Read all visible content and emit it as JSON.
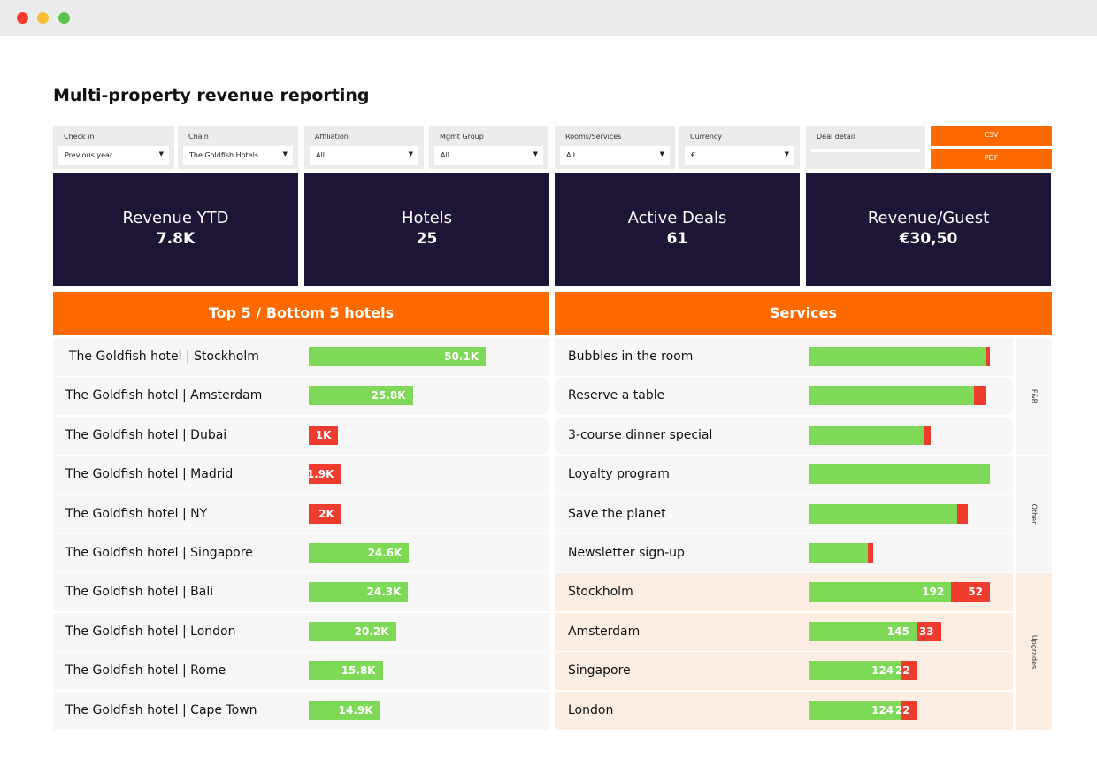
{
  "title": "Multi-property revenue reporting",
  "filters": [
    {
      "label": "Check in",
      "value": "Previous year"
    },
    {
      "label": "Chain",
      "value": "The Goldfish Hotels"
    },
    {
      "label": "Affiliation",
      "value": "All"
    },
    {
      "label": "Mgmt Group",
      "value": "All"
    },
    {
      "label": "Rooms/Services",
      "value": "All"
    },
    {
      "label": "Currency",
      "value": "€"
    },
    {
      "label": "Deal detail"
    }
  ],
  "buttons": [
    "CSV",
    "PDF"
  ],
  "kpis": [
    {
      "label": "Revenue YTD",
      "value": "7.8K"
    },
    {
      "label": "Hotels",
      "value": "25"
    },
    {
      "label": "Active Deals",
      "value": "61"
    },
    {
      "label": "Revenue/Guest",
      "value": "€30,50"
    }
  ],
  "hotels": {
    "title": "Top 5 / Bottom 5 hotels",
    "rows": [
      {
        "name": "The Goldfish hotel | Stockholm",
        "value": 50100,
        "value_label": "50.1K",
        "color": "#7ed957"
      },
      {
        "name": "The Goldfish hotel | Amsterdam",
        "value": 25800,
        "value_label": "25.8K",
        "color": "#7ed957"
      },
      {
        "name": "The Goldfish hotel | Dubai",
        "value": 1000,
        "value_label": "1K",
        "color": "#f03c2e"
      },
      {
        "name": "The Goldfish hotel | Madrid",
        "value": 1900,
        "value_label": "1.9K",
        "color": "#f03c2e"
      },
      {
        "name": "The Goldfish hotel | NY",
        "value": 2000,
        "value_label": "2K",
        "color": "#f03c2e"
      },
      {
        "name": "The Goldfish hotel | Singapore",
        "value": 24600,
        "value_label": "24.6K",
        "color": "#7ed957"
      },
      {
        "name": "The Goldfish hotel | Bali",
        "value": 24300,
        "value_label": "24.3K",
        "color": "#7ed957"
      },
      {
        "name": "The Goldfish hotel | London",
        "value": 20200,
        "value_label": "20.2K",
        "color": "#7ed957"
      },
      {
        "name": "The Goldfish hotel | Rome",
        "value": 15800,
        "value_label": "15.8K",
        "color": "#7ed957"
      },
      {
        "name": "The Goldfish hotel | Cape Town",
        "value": 14900,
        "value_label": "14.9K",
        "color": "#7ed957"
      }
    ]
  },
  "services": {
    "title": "Services",
    "colors": [
      "#7ed957",
      "#f03c2e"
    ],
    "groups": [
      {
        "name": "F&B",
        "rows": [
          {
            "name": "Bubbles in the room",
            "values": [
              201,
              4
            ]
          },
          {
            "name": "Reserve a table",
            "values": [
              187,
              14
            ]
          },
          {
            "name": "3-course dinner special",
            "values": [
              130,
              8
            ]
          }
        ]
      },
      {
        "name": "Other",
        "rows": [
          {
            "name": "Loyalty program",
            "values": [
              205,
              0
            ]
          },
          {
            "name": "Save the planet",
            "values": [
              168,
              12
            ]
          },
          {
            "name": "Newsletter sign-up",
            "values": [
              67,
              6
            ]
          }
        ]
      },
      {
        "name": "Upgrades",
        "show_values": true,
        "rows": [
          {
            "name": "Stockholm",
            "values": [
              192,
              52
            ]
          },
          {
            "name": "Amsterdam",
            "values": [
              145,
              33
            ]
          },
          {
            "name": "Singapore",
            "values": [
              124,
              22
            ]
          },
          {
            "name": "London",
            "values": [
              124,
              22
            ]
          }
        ]
      }
    ]
  }
}
